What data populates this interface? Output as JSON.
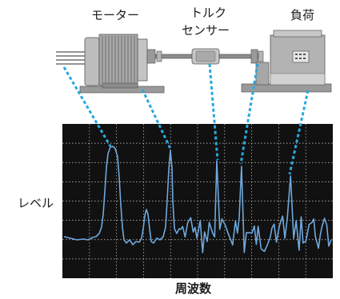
{
  "labels": {
    "motor": "モーター",
    "torque_sensor_line1": "トルク",
    "torque_sensor_line2": "センサー",
    "load": "負荷",
    "ylabel": "レベル",
    "xlabel": "周波数"
  },
  "colors": {
    "accent": "#6fa8dc",
    "leader": "#28a8e0",
    "screen_bg": "#111111",
    "grid": "#cfcfcf",
    "machine_body": "#a8a8a8",
    "machine_dark": "#6f6f6f",
    "machine_light": "#d4d4d4"
  },
  "icons": [
    "motor-icon",
    "torque-sensor-icon",
    "load-machine-icon"
  ]
}
